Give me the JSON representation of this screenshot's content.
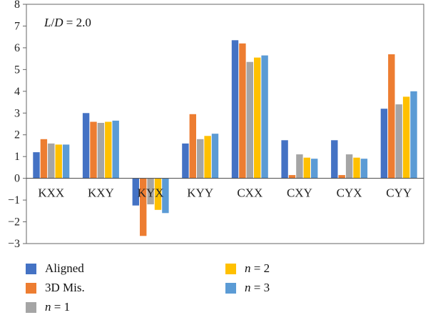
{
  "chart_data": {
    "type": "bar",
    "annotation": "L/D = 2.0",
    "categories": [
      "KXX",
      "KXY",
      "KYX",
      "KYY",
      "CXX",
      "CXY",
      "CYX",
      "CYY"
    ],
    "ylim": [
      -3,
      8
    ],
    "yticks": [
      "-3",
      "-2",
      "-1",
      "0",
      "1",
      "2",
      "3",
      "4",
      "5",
      "6",
      "7",
      "8"
    ],
    "grid": false,
    "legend_position": "bottom",
    "series": [
      {
        "name": "Aligned",
        "color": "#4472C4",
        "values": [
          1.2,
          3.0,
          -1.25,
          1.6,
          6.35,
          1.75,
          1.75,
          3.2
        ]
      },
      {
        "name": "3D Mis.",
        "color": "#ED7D31",
        "values": [
          1.8,
          2.6,
          -2.65,
          2.95,
          6.2,
          0.15,
          0.15,
          5.7
        ]
      },
      {
        "name": "n = 1",
        "color": "#A5A5A5",
        "values": [
          1.6,
          2.55,
          -1.2,
          1.8,
          5.35,
          1.1,
          1.1,
          3.4
        ]
      },
      {
        "name": "n = 2",
        "color": "#FFC000",
        "values": [
          1.55,
          2.6,
          -1.45,
          1.95,
          5.55,
          0.95,
          0.95,
          3.75
        ]
      },
      {
        "name": "n = 3",
        "color": "#5B9BD5",
        "values": [
          1.55,
          2.65,
          -1.6,
          2.05,
          5.65,
          0.9,
          0.9,
          4.0
        ]
      }
    ]
  }
}
